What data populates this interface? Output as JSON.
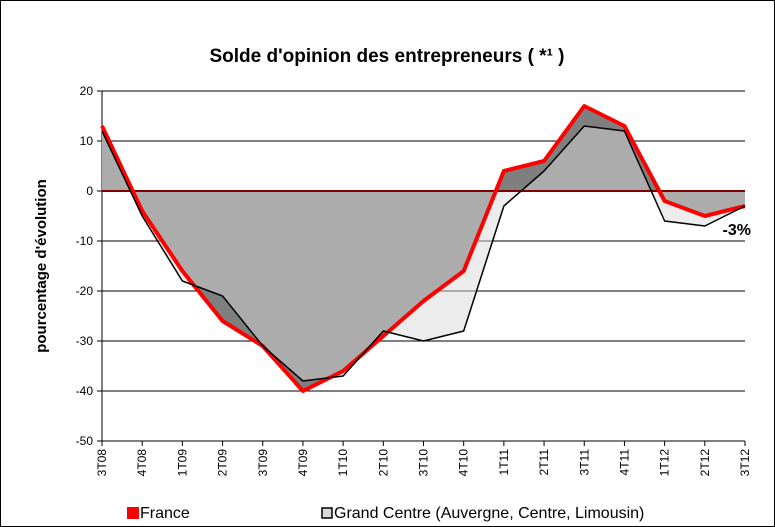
{
  "chart_data": {
    "type": "area",
    "title": "Solde d'opinion des entrepreneurs ( *¹ )",
    "y_label": "pourcentage d'évolution",
    "annotation": "-3%",
    "categories": [
      "3T08",
      "4T08",
      "1T09",
      "2T09",
      "3T09",
      "4T09",
      "1T10",
      "2T10",
      "3T10",
      "4T10",
      "1T11",
      "2T11",
      "3T11",
      "4T11",
      "1T12",
      "2T12",
      "3T12"
    ],
    "series": [
      {
        "name": "France",
        "color": "#ff0000",
        "fill": "#7f7f7f",
        "values": [
          13,
          -4,
          -16,
          -26,
          -31,
          -40,
          -36,
          -29,
          -22,
          -16,
          4,
          6,
          17,
          13,
          -2,
          -5,
          -3
        ]
      },
      {
        "name": "Grand Centre (Auvergne, Centre, Limousin)",
        "color": "#000000",
        "fill": "#d9d9d9",
        "values": [
          12,
          -5,
          -18,
          -21,
          -31,
          -38,
          -37,
          -28,
          -30,
          -28,
          -3,
          4,
          13,
          12,
          -6,
          -7,
          -3
        ]
      }
    ],
    "ylim": [
      -50,
      20
    ],
    "yticks": [
      -50,
      -40,
      -30,
      -20,
      -10,
      0,
      10,
      20
    ],
    "grid": true
  }
}
